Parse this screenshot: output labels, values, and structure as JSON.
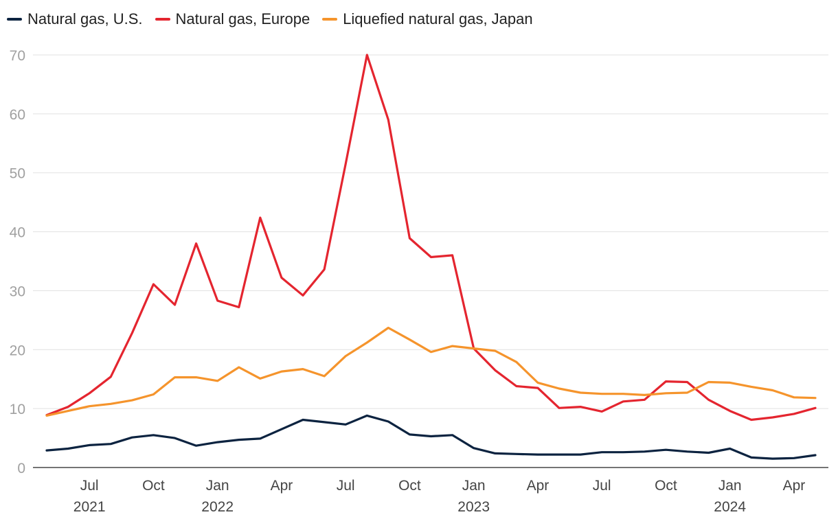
{
  "chart_data": {
    "type": "line",
    "title": "",
    "xlabel": "",
    "ylabel": "",
    "ylim": [
      0,
      70
    ],
    "yticks": [
      0,
      10,
      20,
      30,
      40,
      50,
      60,
      70
    ],
    "grid": true,
    "legend_position": "top-left",
    "x": [
      "2021-05",
      "2021-06",
      "2021-07",
      "2021-08",
      "2021-09",
      "2021-10",
      "2021-11",
      "2021-12",
      "2022-01",
      "2022-02",
      "2022-03",
      "2022-04",
      "2022-05",
      "2022-06",
      "2022-07",
      "2022-08",
      "2022-09",
      "2022-10",
      "2022-11",
      "2022-12",
      "2023-01",
      "2023-02",
      "2023-03",
      "2023-04",
      "2023-05",
      "2023-06",
      "2023-07",
      "2023-08",
      "2023-09",
      "2023-10",
      "2023-11",
      "2023-12",
      "2024-01",
      "2024-02",
      "2024-03",
      "2024-04",
      "2024-05"
    ],
    "x_ticks": [
      {
        "index": 2,
        "label": "Jul",
        "year": "2021"
      },
      {
        "index": 5,
        "label": "Oct",
        "year": ""
      },
      {
        "index": 8,
        "label": "Jan",
        "year": "2022"
      },
      {
        "index": 11,
        "label": "Apr",
        "year": ""
      },
      {
        "index": 14,
        "label": "Jul",
        "year": ""
      },
      {
        "index": 17,
        "label": "Oct",
        "year": ""
      },
      {
        "index": 20,
        "label": "Jan",
        "year": "2023"
      },
      {
        "index": 23,
        "label": "Apr",
        "year": ""
      },
      {
        "index": 26,
        "label": "Jul",
        "year": ""
      },
      {
        "index": 29,
        "label": "Oct",
        "year": ""
      },
      {
        "index": 32,
        "label": "Jan",
        "year": "2024"
      },
      {
        "index": 35,
        "label": "Apr",
        "year": ""
      }
    ],
    "series": [
      {
        "name": "Natural gas, U.S.",
        "color": "#0c2340",
        "values": [
          2.9,
          3.2,
          3.8,
          4.0,
          5.1,
          5.5,
          5.0,
          3.7,
          4.3,
          4.7,
          4.9,
          6.5,
          8.1,
          7.7,
          7.3,
          8.8,
          7.8,
          5.6,
          5.3,
          5.5,
          3.3,
          2.4,
          2.3,
          2.2,
          2.2,
          2.2,
          2.6,
          2.6,
          2.7,
          3.0,
          2.7,
          2.5,
          3.2,
          1.7,
          1.5,
          1.6,
          2.1
        ]
      },
      {
        "name": "Natural gas, Europe",
        "color": "#e4252f",
        "values": [
          8.9,
          10.3,
          12.6,
          15.4,
          22.8,
          31.1,
          27.6,
          38.0,
          28.3,
          27.2,
          42.4,
          32.2,
          29.2,
          33.6,
          51.5,
          70.0,
          59.0,
          38.9,
          35.7,
          36.0,
          20.2,
          16.5,
          13.8,
          13.5,
          10.1,
          10.3,
          9.5,
          11.2,
          11.5,
          14.6,
          14.5,
          11.5,
          9.6,
          8.1,
          8.5,
          9.1,
          10.1
        ]
      },
      {
        "name": "Liquefied natural gas, Japan",
        "color": "#f5942c",
        "values": [
          8.8,
          9.6,
          10.4,
          10.8,
          11.4,
          12.4,
          15.3,
          15.3,
          14.7,
          17.0,
          15.1,
          16.3,
          16.7,
          15.5,
          18.9,
          21.2,
          23.7,
          21.7,
          19.6,
          20.6,
          20.2,
          19.8,
          17.9,
          14.4,
          13.4,
          12.7,
          12.5,
          12.5,
          12.3,
          12.6,
          12.7,
          14.5,
          14.4,
          13.7,
          13.1,
          11.9,
          11.8
        ]
      }
    ]
  }
}
